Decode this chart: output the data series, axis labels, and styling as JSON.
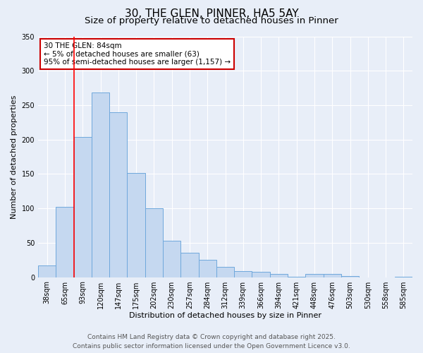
{
  "title": "30, THE GLEN, PINNER, HA5 5AY",
  "subtitle": "Size of property relative to detached houses in Pinner",
  "xlabel": "Distribution of detached houses by size in Pinner",
  "ylabel": "Number of detached properties",
  "bin_labels": [
    "38sqm",
    "65sqm",
    "93sqm",
    "120sqm",
    "147sqm",
    "175sqm",
    "202sqm",
    "230sqm",
    "257sqm",
    "284sqm",
    "312sqm",
    "339sqm",
    "366sqm",
    "394sqm",
    "421sqm",
    "448sqm",
    "476sqm",
    "503sqm",
    "530sqm",
    "558sqm",
    "585sqm"
  ],
  "bar_values": [
    17,
    102,
    204,
    268,
    240,
    151,
    100,
    53,
    35,
    25,
    15,
    9,
    8,
    5,
    1,
    5,
    5,
    2,
    0,
    0,
    1
  ],
  "bar_color": "#c5d8f0",
  "bar_edge_color": "#6fa8dc",
  "annotation_line1": "30 THE GLEN: 84sqm",
  "annotation_line2": "← 5% of detached houses are smaller (63)",
  "annotation_line3": "95% of semi-detached houses are larger (1,157) →",
  "annotation_box_color": "#ffffff",
  "annotation_box_edge_color": "#cc0000",
  "ylim": [
    0,
    350
  ],
  "yticks": [
    0,
    50,
    100,
    150,
    200,
    250,
    300,
    350
  ],
  "bg_color": "#e8eef8",
  "footer_line1": "Contains HM Land Registry data © Crown copyright and database right 2025.",
  "footer_line2": "Contains public sector information licensed under the Open Government Licence v3.0.",
  "title_fontsize": 11,
  "subtitle_fontsize": 9.5,
  "axis_label_fontsize": 8,
  "tick_fontsize": 7,
  "annotation_fontsize": 7.5,
  "footer_fontsize": 6.5
}
